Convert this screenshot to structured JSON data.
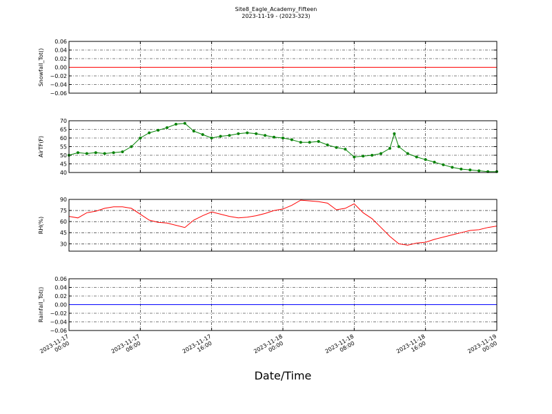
{
  "title": "Site8_Eagle_Academy_Fifteen",
  "subtitle": "2023-11-19 - (2023-323)",
  "x_axis": {
    "label": "Date/Time",
    "xlim": [
      "2023-11-17 00:00",
      "2023-11-19 00:00"
    ],
    "xticks": [
      {
        "value": "2023-11-17 00:00",
        "label": "2023-11-17\n00:00"
      },
      {
        "value": "2023-11-17 08:00",
        "label": "2023-11-17\n08:00"
      },
      {
        "value": "2023-11-17 16:00",
        "label": "2023-11-17\n16:00"
      },
      {
        "value": "2023-11-18 00:00",
        "label": "2023-11-18\n00:00"
      },
      {
        "value": "2023-11-18 08:00",
        "label": "2023-11-18\n08:00"
      },
      {
        "value": "2023-11-18 16:00",
        "label": "2023-11-18\n16:00"
      },
      {
        "value": "2023-11-19 00:00",
        "label": "2023-11-19\n00:00"
      }
    ]
  },
  "chart_data": [
    {
      "type": "line",
      "ylabel": "Snowfall_Tot()",
      "color": "#ff0000",
      "grid": true,
      "marker": false,
      "x": [
        "2023-11-17 00:00",
        "2023-11-19 00:00"
      ],
      "values": [
        0,
        0
      ],
      "ylim": [
        -0.06,
        0.06
      ],
      "yticks": [
        {
          "value": -0.06,
          "label": "−0.06"
        },
        {
          "value": -0.04,
          "label": "−0.04"
        },
        {
          "value": -0.02,
          "label": "−0.02"
        },
        {
          "value": 0,
          "label": "0.00"
        },
        0.02,
        0.04,
        0.06
      ]
    },
    {
      "type": "line",
      "ylabel": "AirTF(F)",
      "color": "#008000",
      "grid": true,
      "marker": true,
      "x": [
        "2023-11-17 00:00",
        "2023-11-17 01:00",
        "2023-11-17 02:00",
        "2023-11-17 03:00",
        "2023-11-17 04:00",
        "2023-11-17 05:00",
        "2023-11-17 06:00",
        "2023-11-17 07:00",
        "2023-11-17 08:00",
        "2023-11-17 09:00",
        "2023-11-17 10:00",
        "2023-11-17 11:00",
        "2023-11-17 12:00",
        "2023-11-17 13:00",
        "2023-11-17 14:00",
        "2023-11-17 15:00",
        "2023-11-17 16:00",
        "2023-11-17 17:00",
        "2023-11-17 18:00",
        "2023-11-17 19:00",
        "2023-11-17 20:00",
        "2023-11-17 21:00",
        "2023-11-17 22:00",
        "2023-11-17 23:00",
        "2023-11-18 00:00",
        "2023-11-18 01:00",
        "2023-11-18 02:00",
        "2023-11-18 03:00",
        "2023-11-18 04:00",
        "2023-11-18 05:00",
        "2023-11-18 06:00",
        "2023-11-18 07:00",
        "2023-11-18 08:00",
        "2023-11-18 09:00",
        "2023-11-18 10:00",
        "2023-11-18 11:00",
        "2023-11-18 12:00",
        "2023-11-18 12:30",
        "2023-11-18 13:00",
        "2023-11-18 14:00",
        "2023-11-18 15:00",
        "2023-11-18 16:00",
        "2023-11-18 17:00",
        "2023-11-18 18:00",
        "2023-11-18 19:00",
        "2023-11-18 20:00",
        "2023-11-18 21:00",
        "2023-11-18 22:00",
        "2023-11-18 23:00",
        "2023-11-19 00:00"
      ],
      "values": [
        50,
        51.5,
        51,
        51.5,
        51,
        51.5,
        52,
        55,
        60,
        63,
        64.5,
        66,
        68,
        68.5,
        64,
        62,
        60,
        61,
        61.5,
        62.5,
        63,
        62.5,
        61.5,
        60.5,
        60,
        59,
        57.5,
        57.5,
        58,
        56,
        54.5,
        53.5,
        49,
        49.5,
        50,
        51,
        54,
        62.5,
        55,
        51,
        49,
        47.5,
        46,
        44.5,
        43,
        42,
        41.5,
        41,
        40.5,
        40.5
      ],
      "ylim": [
        40,
        70
      ],
      "yticks": [
        40,
        45,
        50,
        55,
        60,
        65,
        70
      ]
    },
    {
      "type": "line",
      "ylabel": "RH(%)",
      "color": "#ff0000",
      "grid": true,
      "marker": false,
      "x": [
        "2023-11-17 00:00",
        "2023-11-17 01:00",
        "2023-11-17 02:00",
        "2023-11-17 03:00",
        "2023-11-17 04:00",
        "2023-11-17 05:00",
        "2023-11-17 06:00",
        "2023-11-17 07:00",
        "2023-11-17 08:00",
        "2023-11-17 09:00",
        "2023-11-17 10:00",
        "2023-11-17 11:00",
        "2023-11-17 12:00",
        "2023-11-17 13:00",
        "2023-11-17 14:00",
        "2023-11-17 15:00",
        "2023-11-17 16:00",
        "2023-11-17 17:00",
        "2023-11-17 18:00",
        "2023-11-17 19:00",
        "2023-11-17 20:00",
        "2023-11-17 21:00",
        "2023-11-17 22:00",
        "2023-11-17 23:00",
        "2023-11-18 00:00",
        "2023-11-18 01:00",
        "2023-11-18 02:00",
        "2023-11-18 03:00",
        "2023-11-18 04:00",
        "2023-11-18 05:00",
        "2023-11-18 06:00",
        "2023-11-18 07:00",
        "2023-11-18 08:00",
        "2023-11-18 09:00",
        "2023-11-18 10:00",
        "2023-11-18 11:00",
        "2023-11-18 12:00",
        "2023-11-18 13:00",
        "2023-11-18 14:00",
        "2023-11-18 15:00",
        "2023-11-18 16:00",
        "2023-11-18 17:00",
        "2023-11-18 18:00",
        "2023-11-18 19:00",
        "2023-11-18 20:00",
        "2023-11-18 21:00",
        "2023-11-18 22:00",
        "2023-11-18 23:00",
        "2023-11-19 00:00"
      ],
      "values": [
        67,
        65,
        72,
        74,
        78,
        80,
        80,
        78,
        70,
        62,
        59,
        58,
        55,
        52,
        62,
        68,
        73,
        70,
        67,
        65,
        66,
        68,
        71,
        75,
        77,
        82,
        89,
        88,
        87,
        85,
        76,
        78,
        84,
        72,
        64,
        52,
        40,
        30,
        28,
        31,
        32,
        36,
        39,
        42,
        45,
        48,
        49,
        52,
        54
      ],
      "ylim": [
        20,
        90
      ],
      "yticks": [
        30,
        45,
        60,
        75,
        90
      ]
    },
    {
      "type": "line",
      "ylabel": "Rainfall_Tot()",
      "color": "#0000ff",
      "grid": true,
      "marker": false,
      "x": [
        "2023-11-17 00:00",
        "2023-11-19 00:00"
      ],
      "values": [
        0,
        0
      ],
      "ylim": [
        -0.06,
        0.06
      ],
      "yticks": [
        {
          "value": -0.06,
          "label": "−0.06"
        },
        {
          "value": -0.04,
          "label": "−0.04"
        },
        {
          "value": -0.02,
          "label": "−0.02"
        },
        {
          "value": 0,
          "label": "0.00"
        },
        0.02,
        0.04,
        0.06
      ]
    }
  ]
}
